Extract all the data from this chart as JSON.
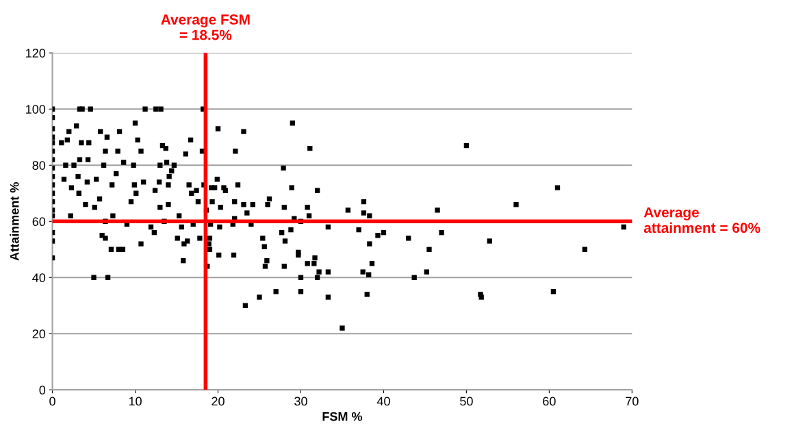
{
  "chart_data": {
    "type": "scatter",
    "xlabel": "FSM %",
    "ylabel": "Attainment %",
    "xlim": [
      0,
      70
    ],
    "ylim": [
      0,
      120
    ],
    "xticks": [
      0,
      10,
      20,
      30,
      40,
      50,
      60,
      70
    ],
    "yticks": [
      0,
      20,
      40,
      60,
      80,
      100,
      120
    ],
    "grid": "y",
    "marker": "square",
    "legend": false,
    "series": [
      {
        "color": "#000000",
        "x": [
          50,
          61,
          56,
          46.5,
          47,
          43,
          45.5,
          52.8,
          64.3,
          69,
          60.5,
          51.7,
          51.8,
          45.2,
          43.7,
          40,
          39.3,
          38.6,
          38.3,
          38.3,
          37.6,
          37.6,
          37.5,
          38,
          38.2,
          37,
          35.7,
          35,
          33.3,
          33.3,
          33.3,
          32,
          32.2,
          31.7,
          31.6,
          32,
          31.1,
          31,
          30.8,
          30.8,
          30,
          30,
          30,
          29.7,
          29.7,
          29,
          28.9,
          29.2,
          28.8,
          27.9,
          28,
          27.7,
          28.1,
          28,
          27,
          26.2,
          26,
          25.9,
          25.7,
          25.6,
          25.4,
          25,
          23.3,
          23.1,
          23.5,
          23.1,
          22.4,
          22.1,
          22,
          22,
          21.9,
          21.8,
          24,
          24.2,
          20.9,
          20.7,
          20.3,
          20,
          19.9,
          19.6,
          20.2,
          20.1,
          19.3,
          19.1,
          19,
          18.9,
          19,
          19.2,
          18.7,
          18.2,
          18.1,
          18.3,
          18.6,
          17.8,
          17.6,
          17.4,
          17,
          16.7,
          16.5,
          16.8,
          16.1,
          16.3,
          15.9,
          15.8,
          15.6,
          15.3,
          15.1,
          14.7,
          14.4,
          14.1,
          14,
          14,
          13.7,
          13.8,
          13.5,
          13.3,
          13,
          13,
          12.9,
          12.5,
          13.1,
          12.4,
          12.3,
          11.9,
          11.2,
          11,
          10.7,
          10.7,
          10.3,
          10.1,
          10,
          9.8,
          9.9,
          9.5,
          9,
          8.6,
          8.1,
          8.5,
          8,
          7.9,
          7.7,
          7.3,
          7.2,
          7.1,
          6.7,
          6.6,
          6.4,
          6.2,
          6,
          6.4,
          6.4,
          5.8,
          5.7,
          5.3,
          5.1,
          5,
          4.6,
          4.4,
          4.3,
          4.2,
          4,
          3.6,
          3.3,
          3.5,
          3.3,
          3.1,
          3.2,
          2.9,
          2.6,
          2.3,
          2.2,
          2,
          1.8,
          1.6,
          1.4,
          1.1,
          0,
          0,
          0,
          0,
          0,
          0,
          0,
          0,
          0,
          0,
          0,
          0,
          0,
          0,
          0,
          0,
          0
        ],
        "values": [
          87,
          72,
          66,
          64,
          56,
          54,
          50,
          53,
          50,
          58,
          35,
          34,
          33,
          42,
          40,
          56,
          55,
          45,
          52,
          62,
          67,
          63,
          42,
          34,
          41,
          57,
          64,
          22,
          58,
          42,
          33,
          71,
          42,
          47,
          45,
          40,
          86,
          62,
          65,
          45,
          60,
          40,
          35,
          48,
          49,
          95,
          72,
          61,
          57,
          79,
          65,
          56,
          53,
          44,
          35,
          68,
          66,
          46,
          44,
          51,
          54,
          33,
          30,
          92,
          63,
          66,
          73,
          85,
          67,
          61,
          48,
          59,
          59,
          66,
          71,
          72,
          65,
          93,
          75,
          72,
          58,
          48,
          67,
          59,
          54,
          52,
          50,
          72,
          44,
          100,
          85,
          73,
          64,
          54,
          67,
          71,
          59,
          89,
          73,
          70,
          84,
          53,
          52,
          46,
          58,
          62,
          54,
          80,
          78,
          76,
          73,
          66,
          86,
          81,
          60,
          87,
          80,
          65,
          74,
          100,
          100,
          71,
          56,
          58,
          100,
          74,
          52,
          85,
          89,
          70,
          95,
          80,
          73,
          67,
          59,
          81,
          92,
          50,
          50,
          85,
          77,
          62,
          73,
          50,
          40,
          90,
          85,
          80,
          55,
          54,
          60,
          92,
          68,
          75,
          65,
          40,
          100,
          88,
          82,
          74,
          66,
          100,
          100,
          88,
          82,
          76,
          70,
          94,
          80,
          72,
          62,
          92,
          89,
          80,
          75,
          88,
          100,
          97,
          93,
          90,
          88,
          85,
          82,
          79,
          76,
          73,
          70,
          67,
          64,
          62,
          56,
          53,
          47
        ]
      }
    ],
    "ref_lines": [
      {
        "axis": "x",
        "value": 18.5,
        "label": "Average FSM\n= 18.5%",
        "color": "#ff0000"
      },
      {
        "axis": "y",
        "value": 60,
        "label": "Average\nattainment = 60%",
        "color": "#ff0000"
      }
    ]
  }
}
